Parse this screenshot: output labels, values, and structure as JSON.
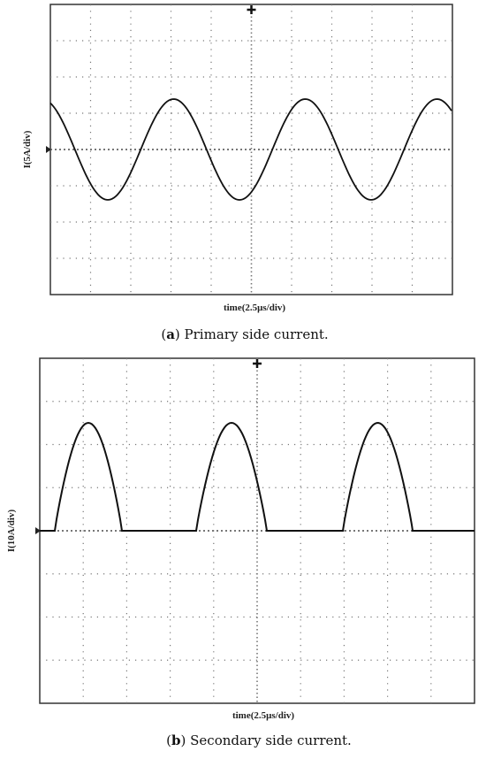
{
  "figures": [
    {
      "y_label": "I(5A/div)",
      "x_label": "time(2.5μs/div)",
      "caption": {
        "open": "(",
        "label": "a",
        "text": ") Primary side current."
      }
    },
    {
      "y_label": "I(10A/div)",
      "x_label": "time(2.5μs/div)",
      "caption": {
        "open": "(",
        "label": "b",
        "text": ") Secondary side current."
      }
    }
  ]
}
